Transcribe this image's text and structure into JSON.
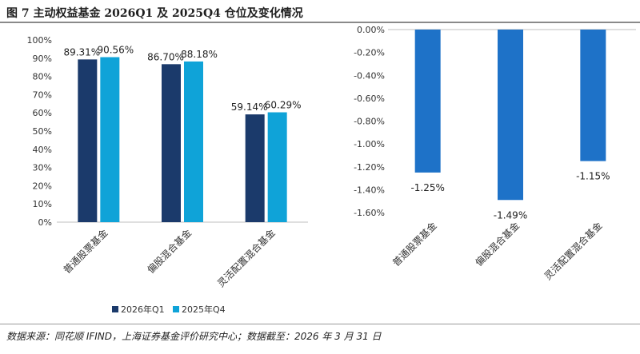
{
  "figure": {
    "title": "图 7 主动权益基金 2026Q1 及 2025Q4 仓位及变化情况",
    "source": "数据来源：同花顺 IFIND，上海证券基金评价研究中心；数据截至：2026 年 3 月 31 日"
  },
  "chart_data": [
    {
      "type": "bar",
      "categories": [
        "普通股票基金",
        "偏股混合基金",
        "灵活配置混合基金"
      ],
      "series": [
        {
          "name": "2026年Q1",
          "values": [
            89.31,
            86.7,
            59.14
          ],
          "labels": [
            "89.31%",
            "86.70%",
            "59.14%"
          ],
          "color": "#1b3a6b"
        },
        {
          "name": "2025年Q4",
          "values": [
            90.56,
            88.18,
            60.29
          ],
          "labels": [
            "90.56%",
            "88.18%",
            "60.29%"
          ],
          "color": "#0fa3d8"
        }
      ],
      "ylim": [
        0,
        100
      ],
      "yticks": [
        0,
        10,
        20,
        30,
        40,
        50,
        60,
        70,
        80,
        90,
        100
      ],
      "ytick_labels": [
        "0%",
        "10%",
        "20%",
        "30%",
        "40%",
        "50%",
        "60%",
        "70%",
        "80%",
        "90%",
        "100%"
      ],
      "grid": false,
      "legend": "bottom"
    },
    {
      "type": "bar",
      "categories": [
        "普通股票基金",
        "偏股混合基金",
        "灵活配置混合基金"
      ],
      "series": [
        {
          "values": [
            -1.25,
            -1.49,
            -1.15
          ],
          "labels": [
            "-1.25%",
            "-1.49%",
            "-1.15%"
          ],
          "color": "#1e72c8"
        }
      ],
      "ylim": [
        -1.6,
        0
      ],
      "yticks": [
        0,
        -0.2,
        -0.4,
        -0.6,
        -0.8,
        -1.0,
        -1.2,
        -1.4,
        -1.6
      ],
      "ytick_labels": [
        "0.00%",
        "-0.20%",
        "-0.40%",
        "-0.60%",
        "-0.80%",
        "-1.00%",
        "-1.20%",
        "-1.40%",
        "-1.60%"
      ],
      "grid": false,
      "legend": "none"
    }
  ]
}
